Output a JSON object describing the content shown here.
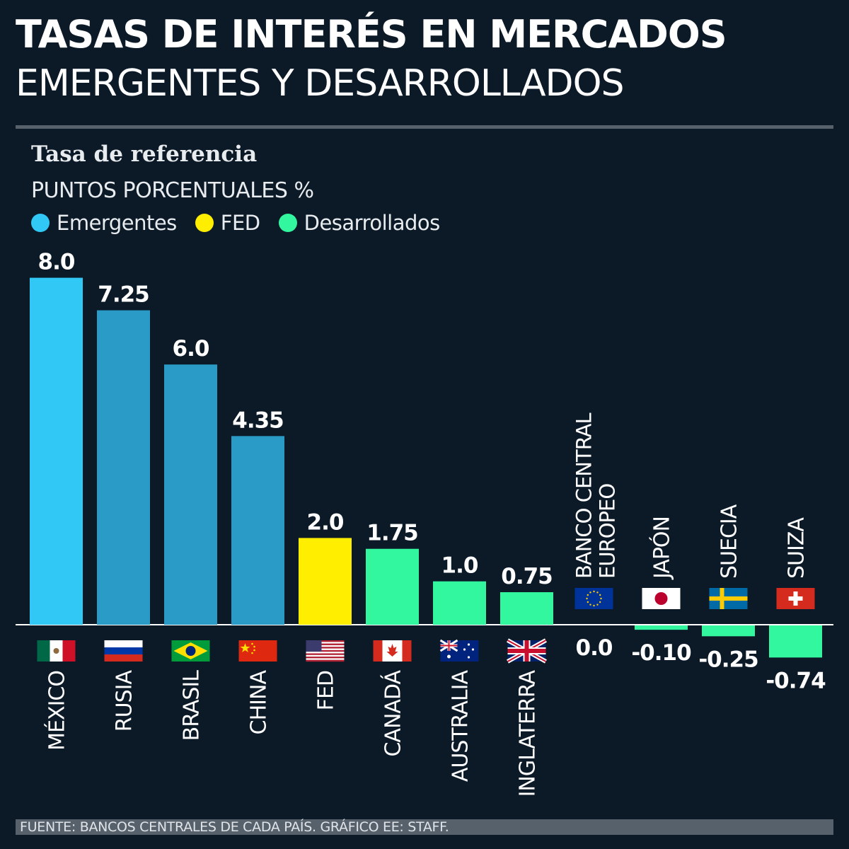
{
  "header": {
    "title_line1": "TASAS DE INTERÉS EN MERCADOS",
    "title_line2": "EMERGENTES Y DESARROLLADOS"
  },
  "subtitle": "Tasa de referencia",
  "units": "PUNTOS PORCENTUALES %",
  "legend": [
    {
      "label": "Emergentes",
      "color": "#31c8f6"
    },
    {
      "label": "FED",
      "color": "#ffee00"
    },
    {
      "label": "Desarrollados",
      "color": "#33f79f"
    }
  ],
  "footer": "FUENTE: BANCOS CENTRALES DE CADA PAÍS. GRÁFICO EE: STAFF.",
  "chart_data": {
    "type": "bar",
    "categories": [
      "MÉXICO",
      "RUSIA",
      "BRASIL",
      "CHINA",
      "FED",
      "CANADÁ",
      "AUSTRALIA",
      "INGLATERRA",
      "BANCO CENTRAL EUROPEO",
      "JAPÓN",
      "SUECIA",
      "SUIZA"
    ],
    "values": [
      8.0,
      7.25,
      6.0,
      4.35,
      2.0,
      1.75,
      1.0,
      0.75,
      0.0,
      -0.1,
      -0.25,
      -0.74
    ],
    "value_labels": [
      "8.0",
      "7.25",
      "6.0",
      "4.35",
      "2.0",
      "1.75",
      "1.0",
      "0.75",
      "0.0",
      "-0.10",
      "-0.25",
      "-0.74"
    ],
    "groups": [
      "Emergentes",
      "Emergentes",
      "Emergentes",
      "Emergentes",
      "FED",
      "Desarrollados",
      "Desarrollados",
      "Desarrollados",
      "Desarrollados",
      "Desarrollados",
      "Desarrollados",
      "Desarrollados"
    ],
    "bar_colors": [
      "#31c8f6",
      "#2a9bc6",
      "#2a9bc6",
      "#2a9bc6",
      "#ffee00",
      "#33f79f",
      "#33f79f",
      "#33f79f",
      "#33f79f",
      "#33f79f",
      "#33f79f",
      "#33f79f"
    ],
    "flags": [
      "mexico-flag-icon",
      "russia-flag-icon",
      "brazil-flag-icon",
      "china-flag-icon",
      "usa-flag-icon",
      "canada-flag-icon",
      "australia-flag-icon",
      "uk-flag-icon",
      "eu-flag-icon",
      "japan-flag-icon",
      "sweden-flag-icon",
      "switzerland-flag-icon"
    ],
    "ylim": [
      -0.74,
      8.0
    ],
    "grid": false,
    "legend_position": "top-left"
  }
}
